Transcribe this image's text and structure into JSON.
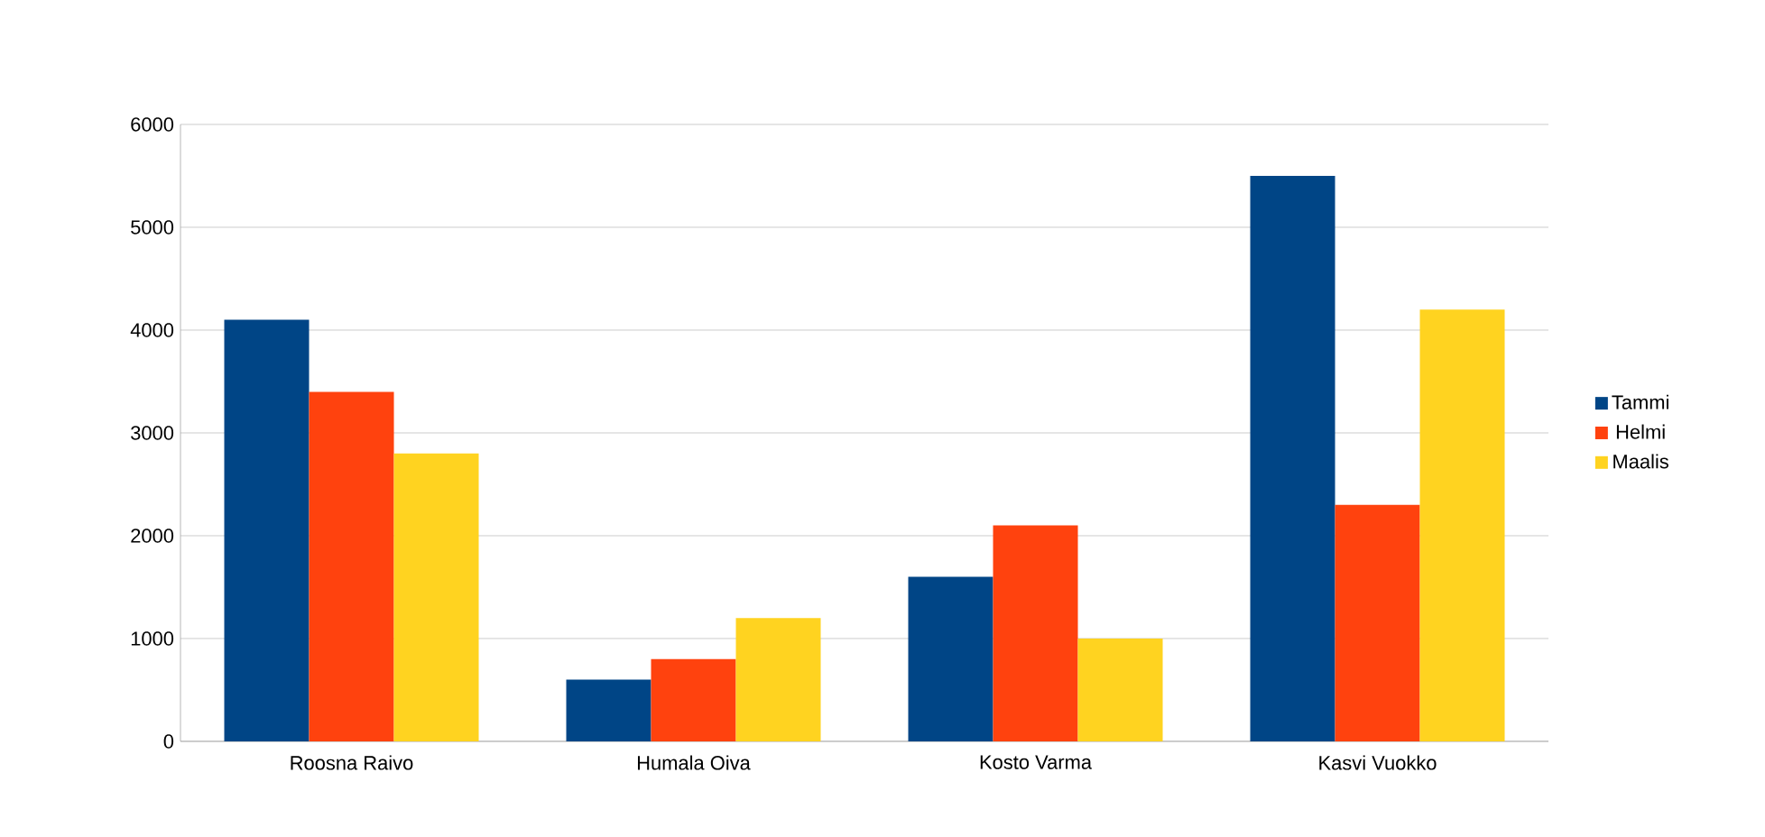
{
  "chart_data": {
    "type": "bar",
    "categories": [
      "Roosna Raivo",
      "Humala Oiva",
      "Kosto Varma",
      "Kasvi Vuokko"
    ],
    "series": [
      {
        "name": "Tammi",
        "color": "#004586",
        "values": [
          4100,
          600,
          1600,
          5500
        ]
      },
      {
        "name": "Helmi",
        "color": "#ff420e",
        "values": [
          3400,
          800,
          2100,
          2300
        ]
      },
      {
        "name": "Maalis",
        "color": "#ffd320",
        "values": [
          2800,
          1200,
          1000,
          4200
        ]
      }
    ],
    "ylim": [
      0,
      6000
    ],
    "yticks": [
      0,
      1000,
      2000,
      3000,
      4000,
      5000,
      6000
    ],
    "grid": "y",
    "legend": "right"
  }
}
